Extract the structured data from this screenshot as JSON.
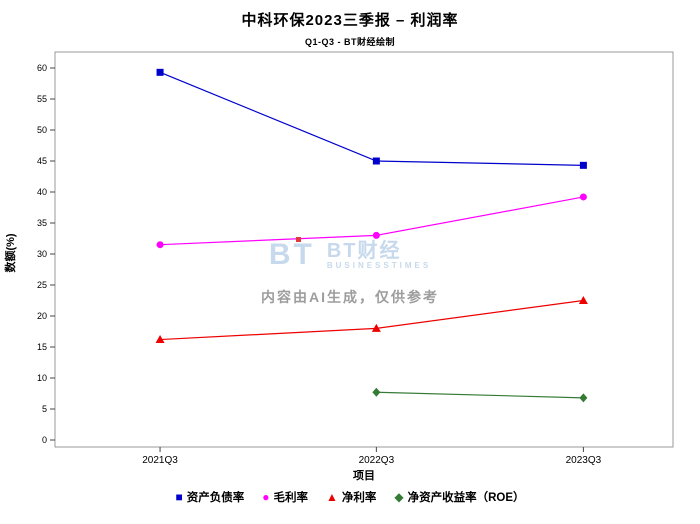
{
  "header": {
    "title": "中科环保2023三季报 – 利润率",
    "subtitle": "Q1-Q3 - BT财经绘制"
  },
  "watermark": {
    "logo": "BT",
    "brand": "BT财经",
    "brand_sub": "BUSINESSTIMES",
    "disclaimer": "内容由AI生成，仅供参考"
  },
  "chart_data": {
    "type": "line",
    "title": "中科环保2023三季报 – 利润率",
    "subtitle": "Q1-Q3 - BT财经绘制",
    "categories": [
      "2021Q3",
      "2022Q3",
      "2023Q3"
    ],
    "series": [
      {
        "name": "资产负债率",
        "values": [
          59.3,
          45.0,
          44.3
        ],
        "color": "#0000cc",
        "marker": "square"
      },
      {
        "name": "毛利率",
        "values": [
          31.5,
          33.0,
          39.2
        ],
        "color": "#ff00ff",
        "marker": "circle"
      },
      {
        "name": "净利率",
        "values": [
          16.2,
          18.0,
          22.5
        ],
        "color": "#ee0000",
        "marker": "triangle"
      },
      {
        "name": "净资产收益率（ROE）",
        "values": [
          null,
          7.7,
          6.8
        ],
        "color": "#357a35",
        "marker": "diamond"
      }
    ],
    "xlabel": "项目",
    "ylabel": "数额(%)",
    "ylim": [
      0,
      62.5
    ],
    "yticks": [
      0,
      5,
      10,
      15,
      20,
      25,
      30,
      35,
      40,
      45,
      50,
      55,
      60
    ],
    "grid": false,
    "legend_position": "bottom"
  }
}
